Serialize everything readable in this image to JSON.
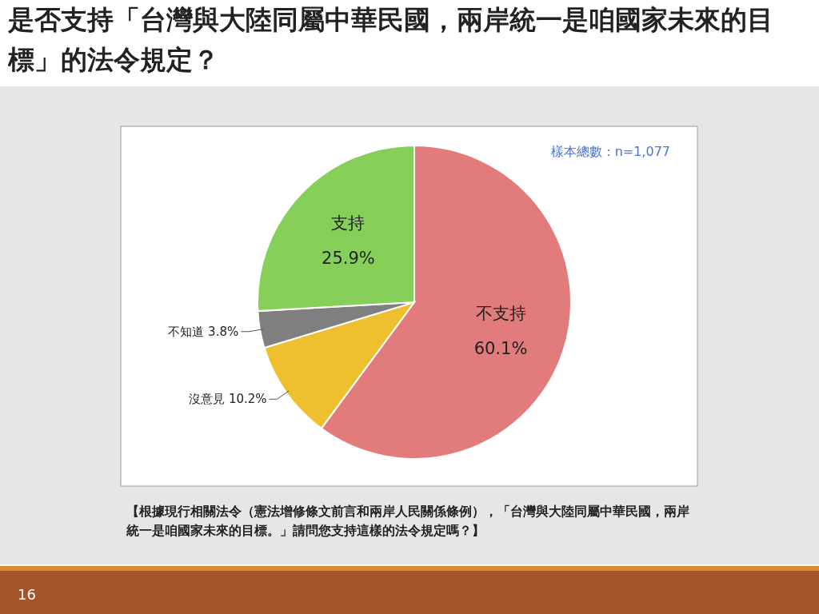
{
  "chart_data": {
    "type": "pie",
    "title": "是否支持「台灣與大陸同屬中華民國，兩岸統一是咱國家未來的目標」的法令規定？",
    "categories": [
      "不支持",
      "沒意見",
      "不知道",
      "支持"
    ],
    "values": [
      60.1,
      10.2,
      3.8,
      25.9
    ],
    "colors": [
      "#e27c7c",
      "#eec02f",
      "#7f7f7f",
      "#86d05a"
    ],
    "value_labels": [
      "60.1%",
      "10.2%",
      "3.8%",
      "25.9%"
    ],
    "annotations": [
      "樣本總數：n=1,077",
      "【根據現行相關法令（憲法增修條文前言和兩岸人民關係條例），「台灣與大陸同屬中華民國，兩岸統一是咱國家未來的目標。」請問您支持這樣的法令規定嗎？】",
      "16"
    ]
  }
}
